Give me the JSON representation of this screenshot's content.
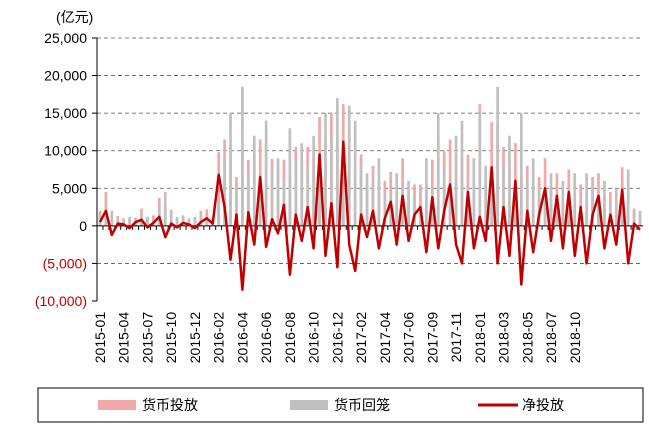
{
  "chart_data": {
    "type": "bar_line",
    "unit_label": "(亿元)",
    "categories": [
      "2015-01",
      null,
      null,
      null,
      "2015-04",
      null,
      null,
      null,
      "2015-07",
      null,
      null,
      null,
      "2015-10",
      null,
      null,
      null,
      "2015-12",
      null,
      null,
      null,
      "2016-02",
      null,
      null,
      null,
      "2016-04",
      null,
      null,
      null,
      "2016-06",
      null,
      null,
      null,
      "2016-08",
      null,
      null,
      null,
      "2016-10",
      null,
      null,
      null,
      "2016-12",
      null,
      null,
      null,
      "2017-02",
      null,
      null,
      null,
      "2017-04",
      null,
      null,
      null,
      "2017-06",
      null,
      null,
      null,
      "2017-09",
      null,
      null,
      null,
      "2017-11",
      null,
      null,
      null,
      "2018-01",
      null,
      null,
      null,
      "2018-03",
      null,
      null,
      null,
      "2018-05",
      null,
      null,
      null,
      "2018-07",
      null,
      null,
      null,
      "2018-10",
      null,
      null,
      null,
      null,
      null,
      null,
      null,
      null,
      null,
      null,
      null
    ],
    "series": [
      {
        "name": "货币投放",
        "kind": "bar",
        "color": "#f0a8a8",
        "values": [
          2000,
          4500,
          800,
          1300,
          1000,
          900,
          1100,
          2300,
          1000,
          1400,
          3700,
          3000,
          2100,
          1000,
          1400,
          1000,
          900,
          2000,
          2200,
          900,
          9800,
          11500,
          10500,
          6500,
          10000,
          8800,
          9500,
          11500,
          11200,
          8900,
          8000,
          8800,
          6500,
          10500,
          9000,
          10500,
          9000,
          14500,
          11000,
          15000,
          11500,
          16200,
          13500,
          8000,
          9500,
          5500,
          8000,
          6000,
          6000,
          7200,
          4500,
          9000,
          4000,
          5500,
          5500,
          5500,
          8800,
          12000,
          10000,
          11500,
          9500,
          9000,
          9500,
          6000,
          16200,
          6000,
          13800,
          13500,
          10500,
          8000,
          11000,
          7200,
          8000,
          5500,
          6500,
          9000,
          5000,
          7000,
          3000,
          7500,
          3000,
          5500,
          2000,
          6500,
          7000,
          3000,
          4500,
          2500,
          7800,
          2500,
          2300,
          1500
        ]
      },
      {
        "name": "货币回笼",
        "kind": "bar",
        "color": "#c0c0c0",
        "values": [
          1500,
          2500,
          2000,
          1000,
          800,
          1200,
          600,
          1500,
          1200,
          1000,
          2500,
          4500,
          1800,
          1200,
          1000,
          800,
          1200,
          1500,
          1200,
          600,
          3000,
          9000,
          15000,
          5000,
          18500,
          7000,
          12000,
          5000,
          14000,
          8000,
          9000,
          6000,
          13000,
          9000,
          11000,
          8000,
          12000,
          5000,
          15000,
          12000,
          17000,
          5000,
          16000,
          14000,
          8000,
          7000,
          6000,
          9000,
          5000,
          4000,
          7000,
          5000,
          6000,
          4000,
          3000,
          9000,
          5000,
          15000,
          8000,
          6000,
          12000,
          14000,
          5000,
          9000,
          15000,
          8000,
          6000,
          18500,
          8000,
          12000,
          5000,
          15000,
          6000,
          9000,
          5000,
          4000,
          7000,
          3000,
          6000,
          3000,
          7000,
          3000,
          7000,
          5000,
          3000,
          6000,
          3000,
          5000,
          3000,
          7500,
          2000,
          2000
        ]
      },
      {
        "name": "净投放",
        "kind": "line",
        "color": "#c00000",
        "values": [
          500,
          2000,
          -1200,
          300,
          200,
          -300,
          500,
          800,
          -200,
          400,
          1200,
          -1500,
          300,
          -200,
          400,
          200,
          -300,
          500,
          1000,
          300,
          6800,
          2500,
          -4500,
          1500,
          -8500,
          1800,
          -2500,
          6500,
          -2800,
          900,
          -1000,
          2800,
          -6500,
          1500,
          -2000,
          2500,
          -3000,
          9500,
          -4000,
          3000,
          -5500,
          11200,
          -2500,
          -6000,
          1500,
          -1500,
          2000,
          -3000,
          1000,
          3200,
          -2500,
          4000,
          -2000,
          1500,
          2500,
          -3500,
          3800,
          -3000,
          2000,
          5500,
          -2500,
          -5000,
          4500,
          -3000,
          1200,
          -2000,
          7800,
          -5000,
          2500,
          -4000,
          6000,
          -7800,
          2000,
          -3500,
          1500,
          5000,
          -2000,
          4000,
          -3000,
          4500,
          -4000,
          2500,
          -5000,
          1500,
          4000,
          -3000,
          1500,
          -2500,
          4800,
          -5000,
          300,
          -500
        ]
      }
    ],
    "ylim": [
      -10000,
      25000
    ],
    "yticks": [
      {
        "value": -10000,
        "label": "(10,000)"
      },
      {
        "value": -5000,
        "label": "(5,000)"
      },
      0,
      {
        "value": 5000,
        "label": "5,000"
      },
      {
        "value": 10000,
        "label": "10,000"
      },
      {
        "value": 15000,
        "label": "15,000"
      },
      {
        "value": 20000,
        "label": "20,000"
      },
      {
        "value": 25000,
        "label": "25,000"
      }
    ],
    "negative_tick_color": "#c00000",
    "grid": true
  }
}
